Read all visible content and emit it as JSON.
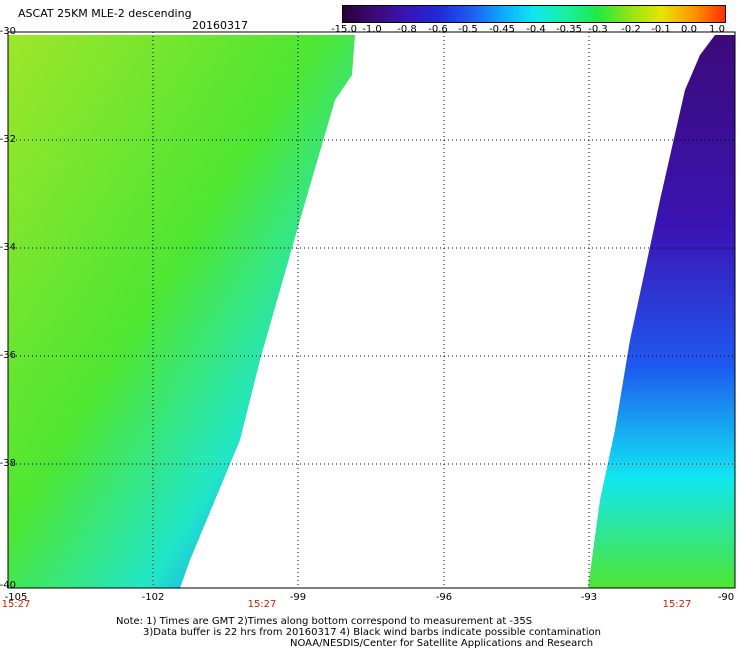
{
  "header": {
    "title": "ASCAT 25KM MLE-2 descending",
    "date": "20160317"
  },
  "colorbar": {
    "labels": [
      "-15.0",
      "-1.0",
      "-0.8",
      "-0.6",
      "-0.5",
      "-0.45",
      "-0.4",
      "-0.35",
      "-0.3",
      "-0.2",
      "-0.1",
      "0.0",
      "1.0"
    ],
    "colors": [
      "#2a0038",
      "#3c0a78",
      "#3a14b4",
      "#1e2ad8",
      "#1e5af0",
      "#0ea8ff",
      "#10e6f0",
      "#18f0a0",
      "#22e844",
      "#8ee614",
      "#e6e600",
      "#ff9600",
      "#ff3000"
    ]
  },
  "axes": {
    "lat_labels": [
      "-30",
      "-32",
      "-34",
      "-36",
      "-38",
      "-40"
    ],
    "lon_labels": [
      "-105",
      "-102",
      "-99",
      "-96",
      "-93",
      "-90"
    ],
    "time_labels": [
      "15:27",
      "15:27",
      "15:27"
    ]
  },
  "swaths": {
    "west_colors": [
      "#9ee62a",
      "#4ee632",
      "#20e6c8",
      "#1a8cff",
      "#1e2ad8"
    ],
    "east_colors": [
      "#3c0a78",
      "#3a14b4",
      "#1e5af0",
      "#10e6f0",
      "#4ee632"
    ]
  },
  "notes": {
    "line1": "Note: 1) Times are GMT 2)Times along bottom correspond to measurement at -35S",
    "line2": "3)Data buffer is 22 hrs from 20160317 4) Black wind barbs indicate possible contamination",
    "line3": "NOAA/NESDIS/Center for Satellite Applications and Research"
  }
}
